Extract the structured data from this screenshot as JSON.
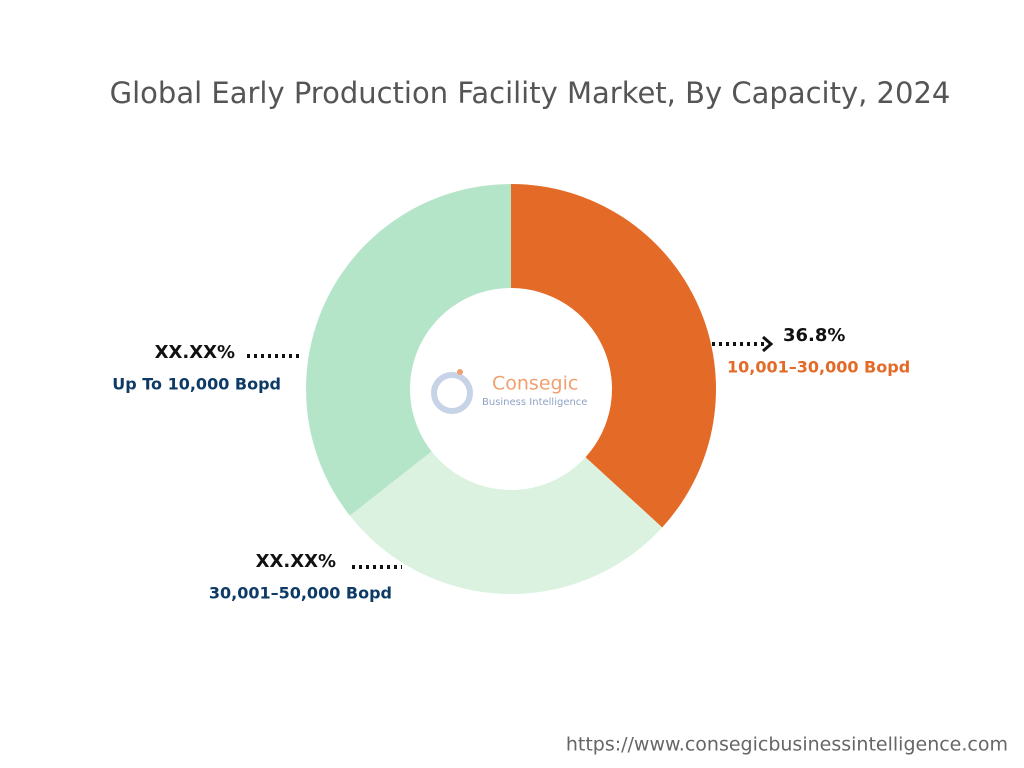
{
  "chart_data": {
    "type": "donut",
    "title": "Global Early Production Facility Market, By Capacity, 2024",
    "categories": [
      "10,001–30,000 Bopd",
      "30,001–50,000 Bopd",
      "Up To 10,000 Bopd"
    ],
    "values": [
      36.8,
      27.6,
      35.6
    ],
    "value_labels": [
      "36.8%",
      "XX.XX%",
      "XX.XX%"
    ],
    "colors": [
      "#e36a27",
      "#daf2df",
      "#b5e5c9"
    ]
  },
  "logo": {
    "name": "Consegic",
    "tagline": "Business Intelligence"
  },
  "source": "https://www.consegicbusinessintelligence.com"
}
